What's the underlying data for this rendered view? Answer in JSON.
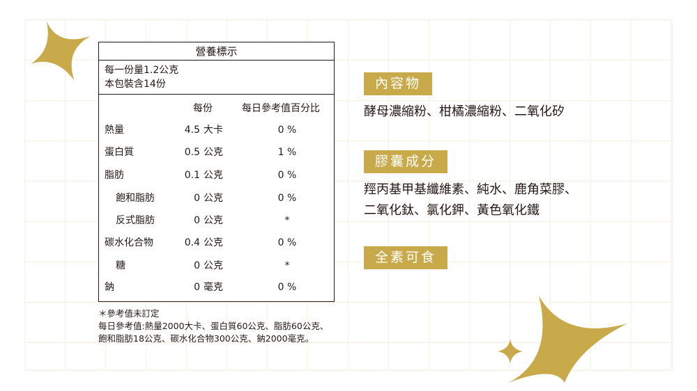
{
  "colors": {
    "accent": "#c9aa4b",
    "grid": "#fbf1e0",
    "text": "#231815"
  },
  "nutrition": {
    "title": "營養標示",
    "serving_size": "每一份量1.2公克",
    "servings_per_package": "本包裝含14份",
    "col_per_serving": "每份",
    "col_daily_percent": "每日參考值百分比",
    "rows": [
      {
        "name": "熱量",
        "amount": "4.5",
        "unit": "大卡",
        "percent": "0 %"
      },
      {
        "name": "蛋白質",
        "amount": "0.5",
        "unit": "公克",
        "percent": "1 %"
      },
      {
        "name": "脂肪",
        "amount": "0.1",
        "unit": "公克",
        "percent": "0 %"
      },
      {
        "name": "飽和脂肪",
        "amount": "0",
        "unit": "公克",
        "percent": "0 %"
      },
      {
        "name": "反式脂肪",
        "amount": "0",
        "unit": "公克",
        "percent": "*"
      },
      {
        "name": "碳水化合物",
        "amount": "0.4",
        "unit": "公克",
        "percent": "0 %"
      },
      {
        "name": "糖",
        "amount": "0",
        "unit": "公克",
        "percent": "*"
      },
      {
        "name": "鈉",
        "amount": "0",
        "unit": "毫克",
        "percent": "0 %"
      }
    ],
    "notes": [
      "＊參考值未訂定",
      "每日參考值:熱量2000大卡、蛋白質60公克、脂肪60公克、",
      "飽和脂肪18公克、碳水化合物300公克、鈉2000毫克。"
    ]
  },
  "contents": {
    "label": "內容物",
    "text": "酵母濃縮粉、柑橘濃縮粉、二氧化矽"
  },
  "capsule": {
    "label": "膠囊成分",
    "lines": [
      "羥丙基甲基纖維素、純水、鹿角菜膠、",
      "二氧化鈦、氯化鉀、黃色氧化鐵"
    ]
  },
  "vegan": {
    "label": "全素可食"
  }
}
